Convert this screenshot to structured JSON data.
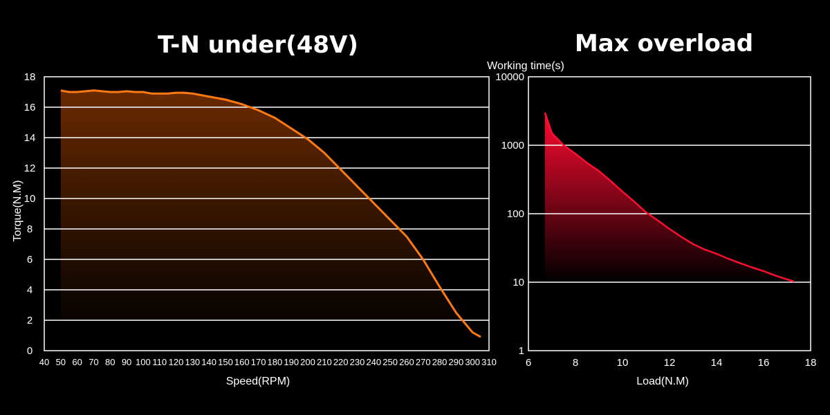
{
  "chart_data": [
    {
      "type": "area",
      "title": "T-N under(48V)",
      "xlabel": "Speed(RPM)",
      "ylabel": "Torque(N.M)",
      "xlim": [
        40,
        310
      ],
      "ylim": [
        0,
        18
      ],
      "x_ticks": [
        "40",
        "50",
        "60",
        "70",
        "80",
        "90",
        "100",
        "110",
        "120",
        "130",
        "140",
        "150",
        "160",
        "170",
        "180",
        "190",
        "200",
        "210",
        "220",
        "230",
        "240",
        "250",
        "260",
        "270",
        "280",
        "290",
        "300",
        "310"
      ],
      "y_ticks": [
        "0",
        "2",
        "4",
        "6",
        "8",
        "10",
        "12",
        "14",
        "16",
        "18"
      ],
      "grid": "horizontal",
      "line_color": "#ff7a12",
      "fill_top_color": "#6a2a00",
      "series": [
        {
          "x": [
            50,
            55,
            60,
            65,
            70,
            75,
            80,
            85,
            90,
            95,
            100,
            105,
            110,
            115,
            120,
            125,
            130,
            140,
            150,
            160,
            170,
            180,
            190,
            200,
            210,
            220,
            230,
            240,
            250,
            260,
            270,
            280,
            290,
            300,
            305
          ],
          "y": [
            17.1,
            17.0,
            17.0,
            17.05,
            17.1,
            17.05,
            17.0,
            17.0,
            17.05,
            17.0,
            17.0,
            16.9,
            16.9,
            16.9,
            16.95,
            16.95,
            16.9,
            16.7,
            16.5,
            16.2,
            15.8,
            15.3,
            14.6,
            13.9,
            13.0,
            11.9,
            10.8,
            9.7,
            8.6,
            7.5,
            6.0,
            4.2,
            2.5,
            1.2,
            0.9
          ]
        }
      ]
    },
    {
      "type": "area",
      "title": "Max overload",
      "xlabel": "Load(N.M)",
      "ylabel": "Working time(s)",
      "xlim": [
        6,
        18
      ],
      "ylim": [
        1,
        10000
      ],
      "yscale": "log",
      "x_ticks": [
        "6",
        "8",
        "10",
        "12",
        "14",
        "16",
        "18"
      ],
      "y_ticks": [
        "1",
        "10",
        "100",
        "1000",
        "10000"
      ],
      "grid": "horizontal",
      "line_color": "#ff1030",
      "fill_top_color": "#ff0a30",
      "series": [
        {
          "x": [
            6.7,
            7.0,
            7.5,
            8.0,
            8.5,
            9.0,
            9.5,
            10.0,
            10.5,
            11.0,
            11.5,
            12.0,
            12.5,
            13.0,
            13.5,
            14.0,
            14.5,
            15.0,
            15.5,
            16.0,
            16.5,
            17.0,
            17.3
          ],
          "y": [
            3000,
            1500,
            1000,
            750,
            550,
            420,
            300,
            210,
            150,
            105,
            80,
            60,
            46,
            36,
            30,
            26,
            22,
            19,
            16.5,
            14.5,
            12.5,
            11,
            10.2
          ]
        }
      ]
    }
  ]
}
